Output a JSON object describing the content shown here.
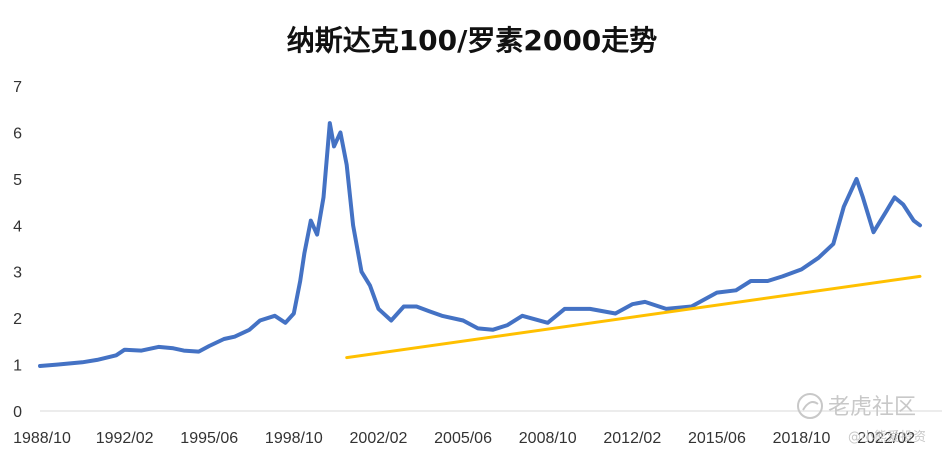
{
  "chart_data": {
    "type": "line",
    "title": "纳斯达克100/罗素2000走势",
    "xlabel": "",
    "ylabel": "",
    "ylim": [
      0,
      7
    ],
    "y_ticks": [
      "0",
      "1",
      "2",
      "3",
      "4",
      "5",
      "6",
      "7"
    ],
    "x_range": [
      "1988/10",
      "2023/06"
    ],
    "x_tick_labels": [
      "1988/10",
      "1992/02",
      "1995/06",
      "1998/10",
      "2002/02",
      "2005/06",
      "2008/10",
      "2012/02",
      "2015/06",
      "2018/10",
      "2022/02"
    ],
    "grid": false,
    "legend": "none",
    "series": [
      {
        "color": "#4472C4",
        "points": [
          [
            "1988/10",
            0.97
          ],
          [
            "1989/06",
            1.0
          ],
          [
            "1990/06",
            1.05
          ],
          [
            "1991/01",
            1.1
          ],
          [
            "1991/10",
            1.2
          ],
          [
            "1992/02",
            1.32
          ],
          [
            "1992/10",
            1.3
          ],
          [
            "1993/06",
            1.38
          ],
          [
            "1994/01",
            1.35
          ],
          [
            "1994/06",
            1.3
          ],
          [
            "1995/01",
            1.28
          ],
          [
            "1995/06",
            1.4
          ],
          [
            "1996/01",
            1.55
          ],
          [
            "1996/06",
            1.6
          ],
          [
            "1997/01",
            1.75
          ],
          [
            "1997/06",
            1.95
          ],
          [
            "1998/01",
            2.05
          ],
          [
            "1998/06",
            1.9
          ],
          [
            "1998/10",
            2.1
          ],
          [
            "1999/01",
            2.8
          ],
          [
            "1999/03",
            3.4
          ],
          [
            "1999/06",
            4.1
          ],
          [
            "1999/09",
            3.8
          ],
          [
            "1999/12",
            4.6
          ],
          [
            "2000/03",
            6.2
          ],
          [
            "2000/05",
            5.7
          ],
          [
            "2000/08",
            6.0
          ],
          [
            "2000/11",
            5.3
          ],
          [
            "2001/02",
            4.0
          ],
          [
            "2001/06",
            3.0
          ],
          [
            "2001/10",
            2.7
          ],
          [
            "2002/02",
            2.2
          ],
          [
            "2002/08",
            1.95
          ],
          [
            "2003/02",
            2.25
          ],
          [
            "2003/08",
            2.25
          ],
          [
            "2004/02",
            2.15
          ],
          [
            "2004/08",
            2.05
          ],
          [
            "2005/06",
            1.95
          ],
          [
            "2006/01",
            1.78
          ],
          [
            "2006/08",
            1.75
          ],
          [
            "2007/03",
            1.85
          ],
          [
            "2007/10",
            2.05
          ],
          [
            "2008/10",
            1.9
          ],
          [
            "2009/06",
            2.2
          ],
          [
            "2010/06",
            2.2
          ],
          [
            "2011/06",
            2.1
          ],
          [
            "2012/02",
            2.3
          ],
          [
            "2012/08",
            2.35
          ],
          [
            "2013/06",
            2.2
          ],
          [
            "2014/06",
            2.25
          ],
          [
            "2015/06",
            2.55
          ],
          [
            "2016/03",
            2.6
          ],
          [
            "2016/10",
            2.8
          ],
          [
            "2017/06",
            2.8
          ],
          [
            "2018/01",
            2.9
          ],
          [
            "2018/10",
            3.05
          ],
          [
            "2019/06",
            3.3
          ],
          [
            "2020/01",
            3.6
          ],
          [
            "2020/06",
            4.4
          ],
          [
            "2020/12",
            5.0
          ],
          [
            "2021/03",
            4.6
          ],
          [
            "2021/08",
            3.85
          ],
          [
            "2022/02",
            4.3
          ],
          [
            "2022/06",
            4.6
          ],
          [
            "2022/10",
            4.45
          ],
          [
            "2023/03",
            4.1
          ],
          [
            "2023/06",
            4.0
          ]
        ]
      },
      {
        "color": "#FFC000",
        "points": [
          [
            "2000/11",
            1.15
          ],
          [
            "2023/06",
            2.9
          ]
        ]
      }
    ]
  },
  "watermark": {
    "brand": "老虎社区",
    "handle": "@小熊爱投资"
  }
}
